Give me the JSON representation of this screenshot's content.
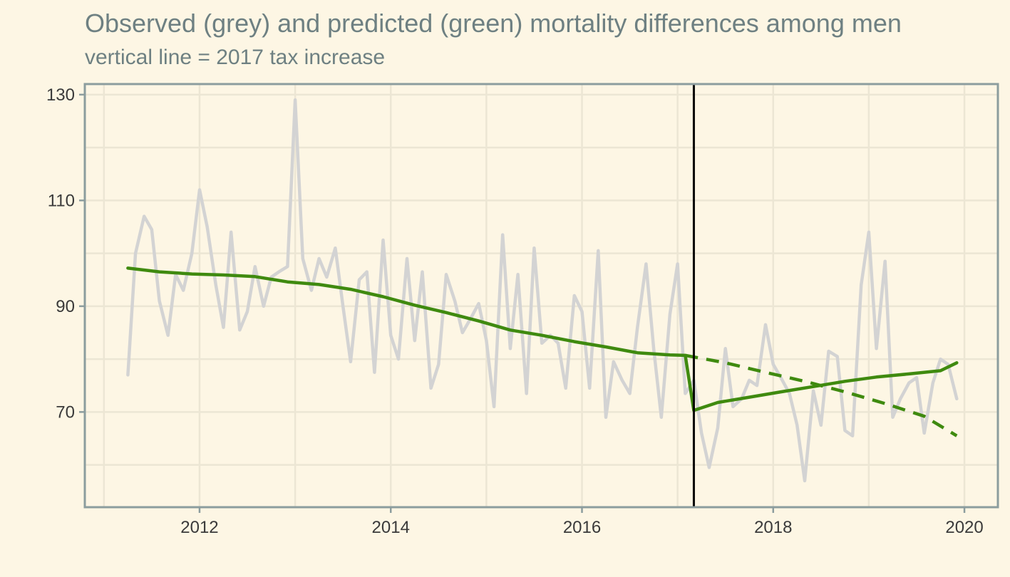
{
  "chart_data": {
    "type": "line",
    "title": "Observed (grey) and predicted (green) mortality differences among men",
    "subtitle": "vertical line = 2017 tax increase",
    "xlabel": "",
    "ylabel": "",
    "xlim": [
      2010.8,
      2020.35
    ],
    "ylim": [
      52,
      132
    ],
    "x_ticks": [
      2012,
      2014,
      2016,
      2018,
      2020
    ],
    "y_ticks": [
      70,
      90,
      110,
      130
    ],
    "grid": true,
    "vline_x": 2017.17,
    "colors": {
      "observed": "#d3d3d3",
      "predicted": "#3f8a0f",
      "vline": "#000000",
      "grid": "#ece6d4",
      "panel_border": "#8c9d9e",
      "background": "#fdf6e4"
    },
    "series": [
      {
        "style": "solid-grey",
        "x": [
          2011.25,
          2011.33,
          2011.42,
          2011.5,
          2011.58,
          2011.67,
          2011.75,
          2011.83,
          2011.92,
          2012.0,
          2012.08,
          2012.17,
          2012.25,
          2012.33,
          2012.42,
          2012.5,
          2012.58,
          2012.67,
          2012.75,
          2012.83,
          2012.92,
          2013.0,
          2013.08,
          2013.17,
          2013.25,
          2013.33,
          2013.42,
          2013.5,
          2013.58,
          2013.67,
          2013.75,
          2013.83,
          2013.92,
          2014.0,
          2014.08,
          2014.17,
          2014.25,
          2014.33,
          2014.42,
          2014.5,
          2014.58,
          2014.67,
          2014.75,
          2014.83,
          2014.92,
          2015.0,
          2015.08,
          2015.17,
          2015.25,
          2015.33,
          2015.42,
          2015.5,
          2015.58,
          2015.67,
          2015.75,
          2015.83,
          2015.92,
          2016.0,
          2016.08,
          2016.17,
          2016.25,
          2016.33,
          2016.42,
          2016.5,
          2016.58,
          2016.67,
          2016.75,
          2016.83,
          2016.92,
          2017.0,
          2017.08,
          2017.17,
          2017.25,
          2017.33,
          2017.42,
          2017.5,
          2017.58,
          2017.67,
          2017.75,
          2017.83,
          2017.92,
          2018.0,
          2018.08,
          2018.17,
          2018.25,
          2018.33,
          2018.42,
          2018.5,
          2018.58,
          2018.67,
          2018.75,
          2018.83,
          2018.92,
          2019.0,
          2019.08,
          2019.17,
          2019.25,
          2019.33,
          2019.42,
          2019.5,
          2019.58,
          2019.67,
          2019.75,
          2019.83,
          2019.92
        ],
        "values": [
          77,
          100,
          107,
          104.5,
          91,
          84.5,
          96,
          93,
          100,
          112,
          105,
          94,
          86,
          104,
          85.5,
          89,
          97.5,
          90,
          95.5,
          96.5,
          97.5,
          129,
          99,
          93,
          99,
          95.5,
          101,
          90,
          79.5,
          95,
          96.5,
          77.5,
          102.5,
          84.5,
          80,
          99,
          83.5,
          96.5,
          74.5,
          79,
          96,
          91,
          85,
          87.5,
          90.5,
          83.5,
          71,
          103.5,
          82,
          96,
          73.5,
          101,
          83,
          84.5,
          83,
          74.5,
          92,
          89,
          74.5,
          100.5,
          69,
          79.5,
          76,
          73.5,
          86,
          98,
          82,
          69,
          88.5,
          98,
          73.5,
          76,
          66,
          59.5,
          67,
          82,
          71,
          72.5,
          76,
          75,
          86.5,
          79,
          76.5,
          73.5,
          67.5,
          57,
          74,
          67.5,
          81.5,
          80.5,
          66.5,
          65.5,
          94,
          104,
          82,
          98.5,
          69,
          72.5,
          75.5,
          76.5,
          66,
          75.5,
          80,
          79,
          72.5
        ]
      },
      {
        "style": "solid-green",
        "x": [
          2011.25,
          2011.58,
          2011.92,
          2012.25,
          2012.58,
          2012.92,
          2013.25,
          2013.58,
          2013.92,
          2014.25,
          2014.58,
          2014.92,
          2015.25,
          2015.58,
          2015.92,
          2016.25,
          2016.58,
          2016.92,
          2017.08,
          2017.17,
          2017.42,
          2017.75,
          2018.08,
          2018.42,
          2018.75,
          2019.08,
          2019.42,
          2019.75,
          2019.92
        ],
        "values": [
          97.2,
          96.5,
          96.1,
          95.9,
          95.6,
          94.6,
          94.1,
          93.2,
          91.8,
          90.2,
          88.8,
          87.2,
          85.5,
          84.5,
          83.3,
          82.3,
          81.2,
          80.8,
          80.7,
          70.3,
          71.8,
          72.8,
          73.8,
          74.8,
          75.8,
          76.6,
          77.2,
          77.8,
          79.3
        ]
      },
      {
        "style": "dashed-green",
        "x": [
          2017.08,
          2017.5,
          2017.92,
          2018.33,
          2018.75,
          2019.17,
          2019.58,
          2019.92
        ],
        "values": [
          80.7,
          79.3,
          77.5,
          75.8,
          73.8,
          71.6,
          69.2,
          65.5
        ]
      }
    ]
  }
}
